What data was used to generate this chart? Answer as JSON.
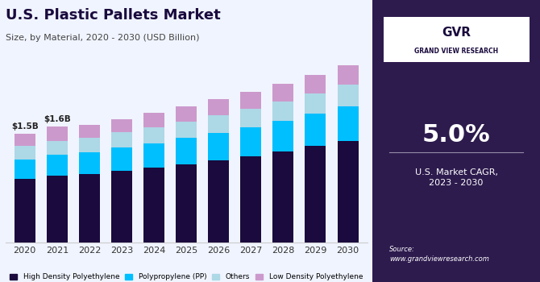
{
  "title": "U.S. Plastic Pallets Market",
  "subtitle": "Size, by Material, 2020 - 2030 (USD Billion)",
  "years": [
    2020,
    2021,
    2022,
    2023,
    2024,
    2025,
    2026,
    2027,
    2028,
    2029,
    2030
  ],
  "hdpe": [
    0.88,
    0.92,
    0.95,
    0.99,
    1.03,
    1.08,
    1.13,
    1.19,
    1.26,
    1.33,
    1.4
  ],
  "pp": [
    0.27,
    0.29,
    0.3,
    0.32,
    0.34,
    0.36,
    0.38,
    0.4,
    0.42,
    0.45,
    0.48
  ],
  "others": [
    0.18,
    0.19,
    0.2,
    0.21,
    0.22,
    0.23,
    0.25,
    0.26,
    0.27,
    0.28,
    0.3
  ],
  "ldpe": [
    0.17,
    0.2,
    0.17,
    0.18,
    0.2,
    0.21,
    0.22,
    0.23,
    0.24,
    0.25,
    0.26
  ],
  "color_hdpe": "#1a0a3d",
  "color_pp": "#00bfff",
  "color_others": "#add8e6",
  "color_ldpe": "#cc99cc",
  "annotation_2020": "$1.5B",
  "annotation_2021": "$1.6B",
  "bg_chart": "#f0f4ff",
  "bg_right": "#2d1b4e",
  "right_panel_text1": "5.0%",
  "right_panel_text2": "U.S. Market CAGR,\n2023 - 2030",
  "legend_labels": [
    "High Density Polyethylene",
    "Polypropylene (PP)",
    "Others",
    "Low Density Polyethylene"
  ],
  "source_text": "Source:\nwww.grandviewresearch.com"
}
